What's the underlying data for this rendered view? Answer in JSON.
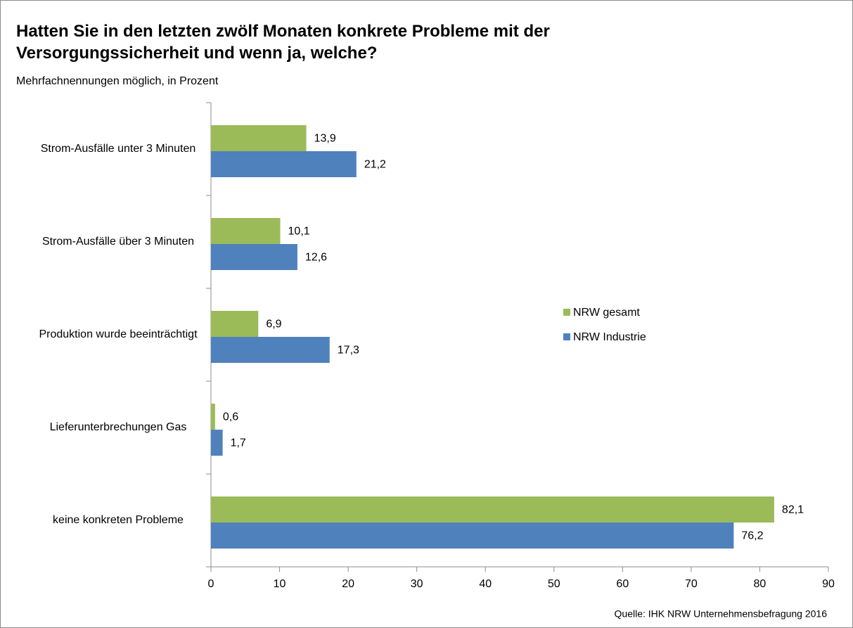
{
  "chart_data": {
    "type": "barh",
    "title": "Hatten Sie in den letzten zwölf Monaten konkrete Probleme mit der Versorgungssicherheit und wenn ja, welche?",
    "subtitle": "Mehrfachnennungen möglich, in Prozent",
    "source": "Quelle:  IHK NRW Unternehmensbefragung  2016",
    "categories": [
      "Strom-Ausfälle unter 3 Minuten",
      "Strom-Ausfälle über 3 Minuten",
      "Produktion wurde beeinträchtigt",
      "Lieferunterbrechungen Gas",
      "keine konkreten Probleme"
    ],
    "series": [
      {
        "name": "NRW gesamt",
        "color": "#9bbb59",
        "values": [
          13.9,
          10.1,
          6.9,
          0.6,
          82.1
        ],
        "value_labels": [
          "13,9",
          "10,1",
          "6,9",
          "0,6",
          "82,1"
        ]
      },
      {
        "name": "NRW Industrie",
        "color": "#4f81bd",
        "values": [
          21.2,
          12.6,
          17.3,
          1.7,
          76.2
        ],
        "value_labels": [
          "21,2",
          "12,6",
          "17,3",
          "1,7",
          "76,2"
        ]
      }
    ],
    "xlim": [
      0,
      90
    ],
    "xticks": [
      0,
      10,
      20,
      30,
      40,
      50,
      60,
      70,
      80,
      90
    ],
    "legend": "right"
  }
}
